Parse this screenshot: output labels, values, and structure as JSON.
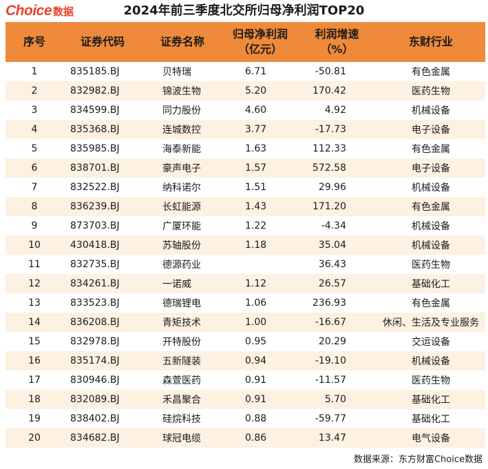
{
  "logo": {
    "brand": "Choice",
    "suffix": "数据"
  },
  "title": "2024年前三季度北交所归母净利润TOP20",
  "columns": {
    "rank": "序号",
    "code": "证券代码",
    "name": "证券名称",
    "profit_line1": "归母净利润",
    "profit_line2": "（亿元）",
    "growth_line1": "利润增速",
    "growth_line2": "（%）",
    "industry": "东财行业"
  },
  "rows": [
    {
      "rank": "1",
      "code": "835185.BJ",
      "name": "贝特瑞",
      "profit": "6.71",
      "growth": "-50.81",
      "industry": "有色金属"
    },
    {
      "rank": "2",
      "code": "832982.BJ",
      "name": "锦波生物",
      "profit": "5.20",
      "growth": "170.42",
      "industry": "医药生物"
    },
    {
      "rank": "3",
      "code": "834599.BJ",
      "name": "同力股份",
      "profit": "4.60",
      "growth": "4.92",
      "industry": "机械设备"
    },
    {
      "rank": "4",
      "code": "835368.BJ",
      "name": "连城数控",
      "profit": "3.77",
      "growth": "-17.73",
      "industry": "电子设备"
    },
    {
      "rank": "5",
      "code": "835985.BJ",
      "name": "海泰新能",
      "profit": "1.63",
      "growth": "112.33",
      "industry": "有色金属"
    },
    {
      "rank": "6",
      "code": "838701.BJ",
      "name": "豪声电子",
      "profit": "1.57",
      "growth": "572.58",
      "industry": "电子设备"
    },
    {
      "rank": "7",
      "code": "832522.BJ",
      "name": "纳科诺尔",
      "profit": "1.51",
      "growth": "29.96",
      "industry": "机械设备"
    },
    {
      "rank": "8",
      "code": "836239.BJ",
      "name": "长虹能源",
      "profit": "1.43",
      "growth": "171.20",
      "industry": "有色金属"
    },
    {
      "rank": "9",
      "code": "873703.BJ",
      "name": "广厦环能",
      "profit": "1.22",
      "growth": "-4.34",
      "industry": "机械设备"
    },
    {
      "rank": "10",
      "code": "430418.BJ",
      "name": "苏轴股份",
      "profit": "1.18",
      "growth": "35.04",
      "industry": "机械设备"
    },
    {
      "rank": "11",
      "code": "832735.BJ",
      "name": "德源药业",
      "profit": "",
      "growth": "36.43",
      "industry": "医药生物"
    },
    {
      "rank": "12",
      "code": "834261.BJ",
      "name": "一诺威",
      "profit": "1.12",
      "growth": "26.57",
      "industry": "基础化工"
    },
    {
      "rank": "13",
      "code": "833523.BJ",
      "name": "德瑞锂电",
      "profit": "1.06",
      "growth": "236.93",
      "industry": "有色金属"
    },
    {
      "rank": "14",
      "code": "836208.BJ",
      "name": "青矩技术",
      "profit": "1.00",
      "growth": "-16.67",
      "industry": "休闲、生活及专业服务"
    },
    {
      "rank": "15",
      "code": "832978.BJ",
      "name": "开特股份",
      "profit": "0.95",
      "growth": "20.29",
      "industry": "交运设备"
    },
    {
      "rank": "16",
      "code": "835174.BJ",
      "name": "五新隧装",
      "profit": "0.94",
      "growth": "-19.10",
      "industry": "机械设备"
    },
    {
      "rank": "17",
      "code": "830946.BJ",
      "name": "森萱医药",
      "profit": "0.91",
      "growth": "-11.57",
      "industry": "医药生物"
    },
    {
      "rank": "18",
      "code": "832089.BJ",
      "name": "禾昌聚合",
      "profit": "0.91",
      "growth": "5.70",
      "industry": "基础化工"
    },
    {
      "rank": "19",
      "code": "838402.BJ",
      "name": "硅烷科技",
      "profit": "0.88",
      "growth": "-59.77",
      "industry": "基础化工"
    },
    {
      "rank": "20",
      "code": "834682.BJ",
      "name": "球冠电缆",
      "profit": "0.86",
      "growth": "13.47",
      "industry": "电气设备"
    }
  ],
  "footer": "数据来源：东方财富Choice数据",
  "colors": {
    "header_bg": "#ee8a3a",
    "stripe_bg": "#fdf1e2",
    "logo": "#e8412c"
  }
}
